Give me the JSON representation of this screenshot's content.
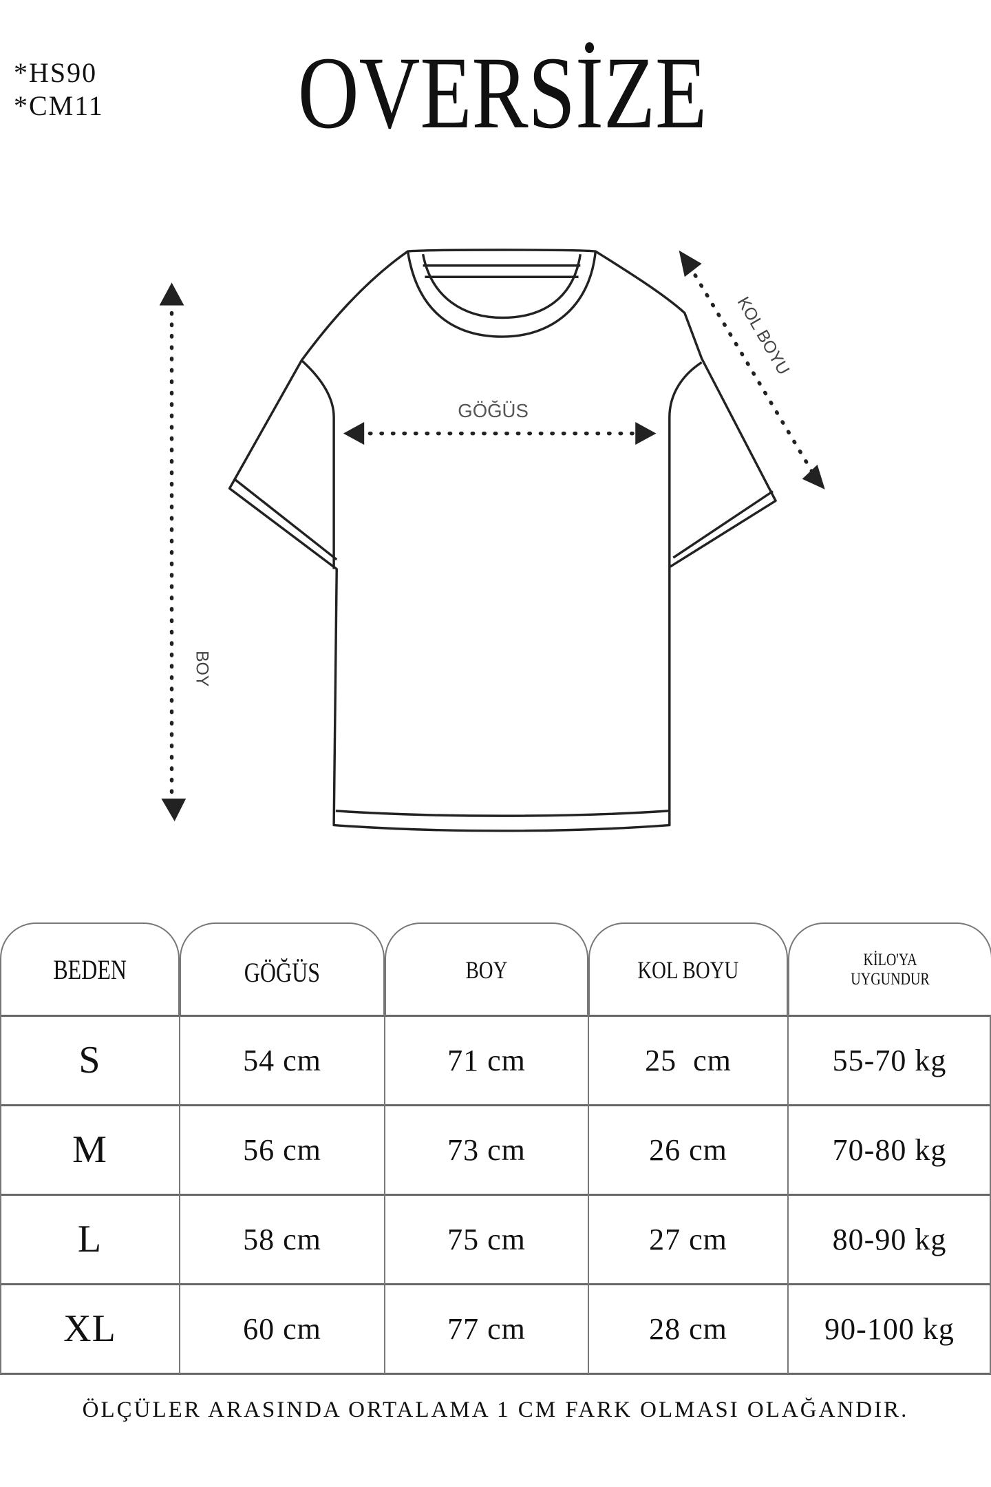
{
  "codes": [
    "*HS90",
    "*CM11"
  ],
  "title": "OVERSİZE",
  "diagram": {
    "labels": {
      "chest": "GÖĞÜS",
      "length": "BOY",
      "sleeve": "KOL BOYU"
    },
    "line_color": "#222222"
  },
  "table": {
    "headers": [
      "BEDEN",
      "GÖĞÜS",
      "BOY",
      "KOL BOYU",
      "KİLO'YA UYGUNDUR"
    ],
    "header_weight_lines": [
      "KİLO'YA",
      "UYGUNDUR"
    ],
    "rows": [
      [
        "S",
        "54 cm",
        "71 cm",
        "25  cm",
        "55-70 kg"
      ],
      [
        "M",
        "56 cm",
        "73 cm",
        "26 cm",
        "70-80 kg"
      ],
      [
        "L",
        "58 cm",
        "75 cm",
        "27 cm",
        "80-90 kg"
      ],
      [
        "XL",
        "60 cm",
        "77 cm",
        "28 cm",
        "90-100 kg"
      ]
    ]
  },
  "footer": "ÖLÇÜLER ARASINDA ORTALAMA 1 CM FARK OLMASI OLAĞANDIR."
}
